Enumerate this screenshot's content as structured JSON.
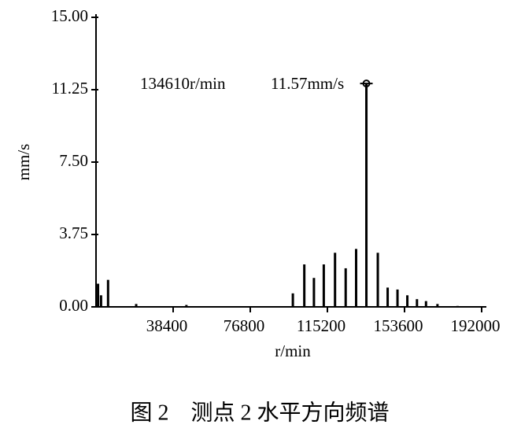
{
  "chart_data": {
    "type": "stem",
    "y_label": "mm/s",
    "x_label": "r/min",
    "caption": "图 2　测点 2 水平方向频谱",
    "annotations": [
      "134610r/min",
      "11.57mm/s"
    ],
    "color": "#000000",
    "x": [
      1000,
      2500,
      6000,
      20000,
      45000,
      98000,
      103700,
      108500,
      113400,
      119000,
      124300,
      129500,
      134610,
      140300,
      145200,
      150100,
      155000,
      159800,
      164300,
      170000,
      180000
    ],
    "values": [
      1.2,
      0.6,
      1.4,
      0.15,
      0.1,
      0.7,
      2.2,
      1.5,
      2.2,
      2.8,
      2.0,
      3.0,
      11.57,
      2.8,
      1.0,
      0.9,
      0.6,
      0.4,
      0.3,
      0.15,
      0.05
    ],
    "xlim": [
      0,
      192000
    ],
    "ylim": [
      0,
      15
    ],
    "xticks": [
      38400,
      76800,
      115200,
      153600,
      192000
    ],
    "yticks": [
      {
        "value": 0,
        "label": "0.00"
      },
      {
        "value": 3.75,
        "label": "3.75"
      },
      {
        "value": 7.5,
        "label": "7.50"
      },
      {
        "value": 11.25,
        "label": "11.25"
      },
      {
        "value": 15,
        "label": "15.00"
      }
    ]
  }
}
